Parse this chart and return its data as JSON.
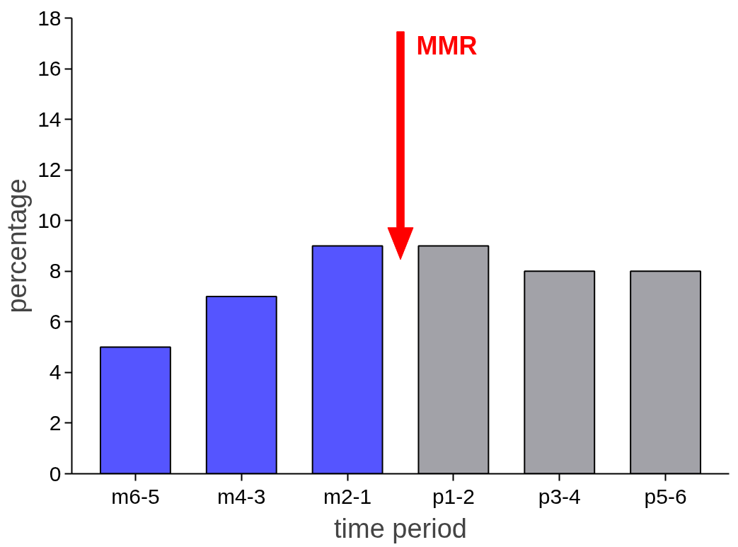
{
  "chart_data": {
    "type": "bar",
    "xlabel": "time period",
    "ylabel": "percentage",
    "categories": [
      "m6-5",
      "m4-3",
      "m2-1",
      "p1-2",
      "p3-4",
      "p5-6"
    ],
    "values": [
      5,
      7,
      9,
      9,
      8,
      8
    ],
    "colors": [
      "#5555ff",
      "#5555ff",
      "#5555ff",
      "#a2a2a8",
      "#a2a2a8",
      "#a2a2a8"
    ],
    "ylim": [
      0,
      18
    ],
    "yticks": [
      0,
      2,
      4,
      6,
      8,
      10,
      12,
      14,
      16,
      18
    ],
    "grid": false,
    "annotations": [
      "MMR"
    ]
  }
}
